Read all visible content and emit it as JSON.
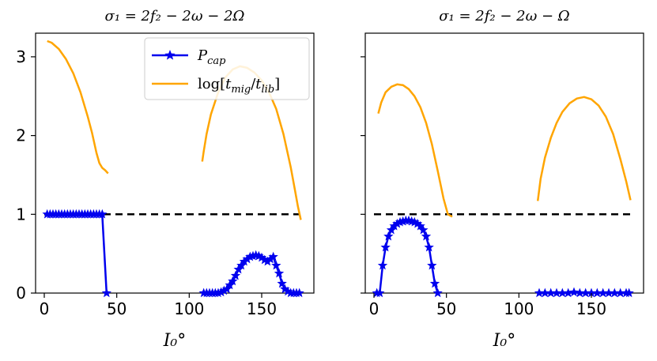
{
  "chart_data": [
    {
      "type": "line",
      "title": "σ₁ = 2f₂ − 2ω − 2Ω",
      "xlabel": "I₀°",
      "ylabel": "",
      "xlim": [
        -6,
        186
      ],
      "ylim": [
        0,
        3.3
      ],
      "xticks": [
        0,
        50,
        100,
        150
      ],
      "yticks": [
        0,
        1,
        2,
        3
      ],
      "ytick_labels_visible": true,
      "reference_line": {
        "y": 1.0,
        "style": "dashed",
        "color": "#000000"
      },
      "legend": {
        "position": "top-right",
        "entries": [
          {
            "label": "P_cap",
            "color": "#0000ee",
            "marker": "star"
          },
          {
            "label": "log[t_mig/t_lib]",
            "color": "#ffa500",
            "marker": "none"
          }
        ]
      },
      "series": [
        {
          "name": "P_cap",
          "color": "#0000ee",
          "marker": "star",
          "segments": [
            {
              "x": [
                2,
                4,
                6,
                8,
                10,
                12,
                14,
                16,
                18,
                20,
                22,
                24,
                26,
                28,
                30,
                32,
                34,
                36,
                38,
                40,
                43
              ],
              "y": [
                1,
                1,
                1,
                1,
                1,
                1,
                1,
                1,
                1,
                1,
                1,
                1,
                1,
                1,
                1,
                1,
                1,
                1,
                1,
                1,
                0
              ]
            },
            {
              "x": [
                110,
                112,
                114,
                116,
                118,
                120,
                122,
                124,
                126,
                128,
                130,
                132,
                134,
                136,
                138,
                140,
                142,
                144,
                146,
                148,
                150,
                152,
                154,
                156,
                158,
                160,
                162,
                164,
                166,
                168,
                170,
                172,
                174,
                176
              ],
              "y": [
                0,
                0,
                0,
                0,
                0,
                0,
                0.01,
                0.03,
                0.05,
                0.1,
                0.15,
                0.22,
                0.3,
                0.35,
                0.4,
                0.43,
                0.46,
                0.47,
                0.48,
                0.47,
                0.45,
                0.42,
                0.4,
                0.43,
                0.46,
                0.35,
                0.25,
                0.12,
                0.05,
                0.02,
                0,
                0,
                0,
                0
              ]
            }
          ]
        },
        {
          "name": "log[t_mig/t_lib]",
          "color": "#ffa500",
          "marker": "none",
          "segments": [
            {
              "x": [
                2,
                5,
                10,
                15,
                20,
                25,
                30,
                33,
                36,
                38,
                40,
                42,
                44
              ],
              "y": [
                3.2,
                3.18,
                3.1,
                2.97,
                2.79,
                2.55,
                2.24,
                2.03,
                1.78,
                1.65,
                1.59,
                1.56,
                1.52
              ]
            },
            {
              "x": [
                109,
                110,
                112,
                115,
                120,
                125,
                130,
                135,
                140,
                145,
                150,
                155,
                160,
                165,
                170,
                173,
                175,
                177
              ],
              "y": [
                1.67,
                1.8,
                2.02,
                2.27,
                2.55,
                2.74,
                2.84,
                2.88,
                2.86,
                2.8,
                2.7,
                2.55,
                2.34,
                2.02,
                1.6,
                1.3,
                1.1,
                0.93
              ]
            }
          ]
        }
      ]
    },
    {
      "type": "line",
      "title": "σ₁ = 2f₂ − 2ω − Ω",
      "xlabel": "I₀°",
      "ylabel": "",
      "xlim": [
        -6,
        186
      ],
      "ylim": [
        0,
        3.3
      ],
      "xticks": [
        0,
        50,
        100,
        150
      ],
      "yticks": [
        0,
        1,
        2,
        3
      ],
      "ytick_labels_visible": false,
      "reference_line": {
        "y": 1.0,
        "style": "dashed",
        "color": "#000000"
      },
      "series": [
        {
          "name": "P_cap",
          "color": "#0000ee",
          "marker": "star",
          "segments": [
            {
              "x": [
                2,
                4,
                6,
                8,
                10,
                12,
                14,
                16,
                18,
                20,
                22,
                24,
                26,
                28,
                30,
                32,
                34,
                36,
                38,
                40,
                42,
                44
              ],
              "y": [
                0,
                0,
                0.35,
                0.58,
                0.72,
                0.8,
                0.85,
                0.88,
                0.9,
                0.91,
                0.92,
                0.92,
                0.91,
                0.9,
                0.88,
                0.85,
                0.8,
                0.72,
                0.58,
                0.35,
                0.12,
                0
              ]
            },
            {
              "x": [
                114,
                118,
                122,
                126,
                130,
                134,
                138,
                142,
                146,
                150,
                154,
                158,
                162,
                166,
                170,
                174,
                176
              ],
              "y": [
                0,
                0,
                0,
                0,
                0,
                0,
                0.01,
                0,
                0,
                0,
                0,
                0,
                0,
                0,
                0,
                0,
                0
              ]
            }
          ]
        },
        {
          "name": "log[t_mig/t_lib]",
          "color": "#ffa500",
          "marker": "none",
          "segments": [
            {
              "x": [
                3,
                5,
                8,
                12,
                16,
                20,
                24,
                28,
                32,
                36,
                40,
                44,
                48,
                51,
                54
              ],
              "y": [
                2.28,
                2.42,
                2.55,
                2.62,
                2.65,
                2.64,
                2.59,
                2.5,
                2.36,
                2.16,
                1.89,
                1.55,
                1.2,
                1.0,
                0.97
              ]
            },
            {
              "x": [
                113,
                115,
                118,
                122,
                126,
                130,
                135,
                140,
                145,
                150,
                155,
                160,
                165,
                170,
                174,
                177
              ],
              "y": [
                1.17,
                1.45,
                1.72,
                1.97,
                2.16,
                2.3,
                2.41,
                2.47,
                2.49,
                2.46,
                2.38,
                2.24,
                2.02,
                1.7,
                1.42,
                1.18
              ]
            }
          ]
        }
      ]
    }
  ]
}
